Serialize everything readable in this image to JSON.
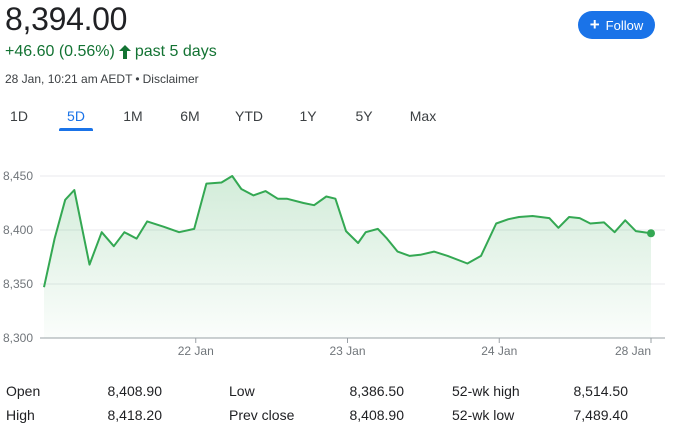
{
  "header": {
    "price": "8,394.00",
    "change": "+46.60 (0.56%)",
    "period": "past 5 days",
    "timestamp": "28 Jan, 10:21 am AEDT",
    "separator": "•",
    "disclaimer": "Disclaimer",
    "follow_label": "Follow"
  },
  "tabs": [
    {
      "label": "1D"
    },
    {
      "label": "5D",
      "active": true
    },
    {
      "label": "1M"
    },
    {
      "label": "6M"
    },
    {
      "label": "YTD"
    },
    {
      "label": "1Y"
    },
    {
      "label": "5Y"
    },
    {
      "label": "Max"
    }
  ],
  "colors": {
    "accent": "#1a73e8",
    "positive": "#137333",
    "line": "#34a853"
  },
  "chart_data": {
    "type": "area",
    "ylim": [
      8300,
      8460
    ],
    "yticks": [
      8300,
      8350,
      8400,
      8450
    ],
    "ytick_labels": [
      "8,300",
      "8,350",
      "8,400",
      "8,450"
    ],
    "xticks": [
      {
        "label": "22 Jan",
        "x": 1.0
      },
      {
        "label": "23 Jan",
        "x": 2.0
      },
      {
        "label": "24 Jan",
        "x": 3.0
      },
      {
        "label": "28 Jan",
        "x": 4.0
      }
    ],
    "series": [
      {
        "x": [
          0.0,
          0.07,
          0.14,
          0.2,
          0.3,
          0.38,
          0.46,
          0.53,
          0.61,
          0.68,
          0.79,
          0.89,
          0.99,
          1.07,
          1.17,
          1.24,
          1.3,
          1.38,
          1.46,
          1.54,
          1.6,
          1.71,
          1.78,
          1.86,
          1.92,
          1.99,
          2.07,
          2.12,
          2.2,
          2.26,
          2.33,
          2.41,
          2.48,
          2.57,
          2.66,
          2.79,
          2.88,
          2.98,
          3.06,
          3.13,
          3.22,
          3.33,
          3.39,
          3.46,
          3.53,
          3.6,
          3.69,
          3.76,
          3.83,
          3.9,
          4.0
        ],
        "y": [
          8347,
          8392,
          8428,
          8437,
          8368,
          8398,
          8385,
          8398,
          8392,
          8408,
          8403,
          8398,
          8401,
          8443,
          8444,
          8450,
          8438,
          8432,
          8436,
          8429,
          8429,
          8425,
          8423,
          8431,
          8429,
          8399,
          8388,
          8398,
          8401,
          8392,
          8380,
          8376,
          8377,
          8380,
          8376,
          8369,
          8376,
          8406,
          8410,
          8412,
          8413,
          8411,
          8402,
          8412,
          8411,
          8406,
          8407,
          8398,
          8409,
          8399,
          8397
        ]
      }
    ]
  },
  "stats": [
    {
      "label": "Open",
      "value": "8,408.90"
    },
    {
      "label": "Low",
      "value": "8,386.50"
    },
    {
      "label": "52-wk high",
      "value": "8,514.50"
    },
    {
      "label": "High",
      "value": "8,418.20"
    },
    {
      "label": "Prev close",
      "value": "8,408.90"
    },
    {
      "label": "52-wk low",
      "value": "7,489.40"
    }
  ]
}
